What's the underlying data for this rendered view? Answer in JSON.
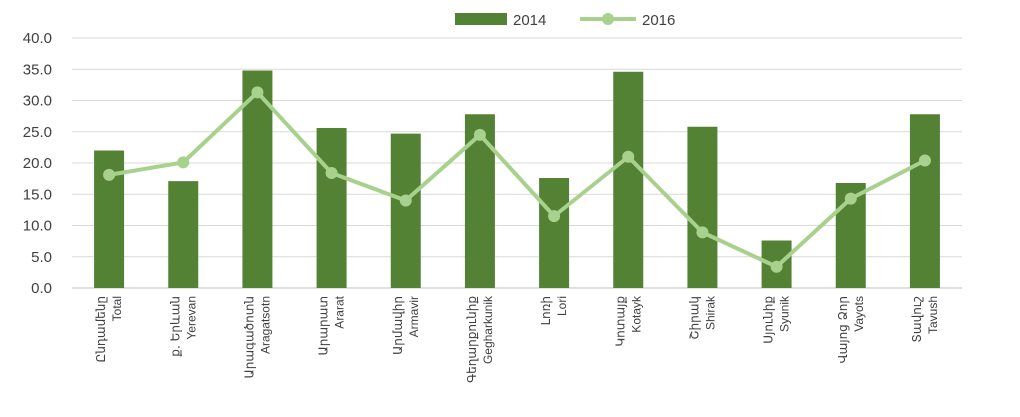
{
  "chart_data": {
    "type": "bar",
    "categories": [
      {
        "arm": "Ընդամենը",
        "en": "Total"
      },
      {
        "arm": "ք. Երևան",
        "en": "Yerevan"
      },
      {
        "arm": "Արագածոտն",
        "en": "Aragatsotn"
      },
      {
        "arm": "Արարատ",
        "en": "Ararat"
      },
      {
        "arm": "Արմավիր",
        "en": "Armavir"
      },
      {
        "arm": "Գեղարքունիք",
        "en": "Gegharkunik"
      },
      {
        "arm": "Լոռի",
        "en": "Lori"
      },
      {
        "arm": "Կոտայք",
        "en": "Kotayk"
      },
      {
        "arm": "Շիրակ",
        "en": "Shirak"
      },
      {
        "arm": "Սյունիք",
        "en": "Syunik"
      },
      {
        "arm": "Վայոց Ձոր",
        "en": "Vayots"
      },
      {
        "arm": "Տավուշ",
        "en": "Tavush"
      }
    ],
    "series": [
      {
        "name": "2014",
        "kind": "bar",
        "color": "#548235",
        "values": [
          22.0,
          17.1,
          34.8,
          25.6,
          24.7,
          27.8,
          17.6,
          34.6,
          25.8,
          7.6,
          16.8,
          27.8
        ]
      },
      {
        "name": "2016",
        "kind": "line",
        "color": "#a9d18e",
        "values": [
          18.1,
          20.1,
          31.3,
          18.4,
          14.0,
          24.5,
          11.5,
          21.0,
          8.9,
          3.4,
          14.3,
          20.4
        ]
      }
    ],
    "ylim": [
      0,
      40
    ],
    "yticks": [
      "0.0",
      "5.0",
      "10.0",
      "15.0",
      "20.0",
      "25.0",
      "30.0",
      "35.0",
      "40.0"
    ],
    "grid": true,
    "legend": "top-center"
  }
}
